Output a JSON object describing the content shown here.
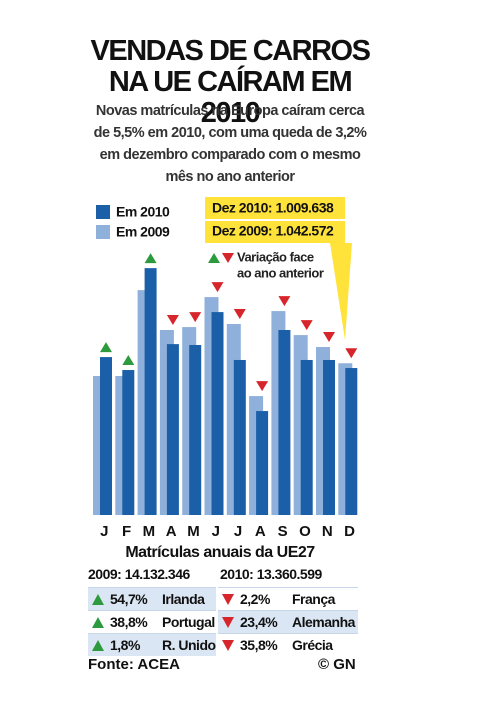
{
  "chart_data": {
    "type": "bar",
    "title": "VENDAS DE CARROS NA UE CAÍRAM EM 2010",
    "subtitle": "Novas matrículas na Europa caíram cerca de 5,5% em 2010, com uma queda de 3,2% em dezembro comparado com o mesmo mês no ano anterior",
    "categories": [
      "J",
      "F",
      "M",
      "A",
      "M",
      "J",
      "J",
      "A",
      "S",
      "O",
      "N",
      "D"
    ],
    "series": [
      {
        "name": "Em 2010",
        "color": "#1a5fa8",
        "values": [
          1085000,
          996000,
          1696000,
          1174000,
          1168000,
          1394000,
          1065000,
          714000,
          1271000,
          1065000,
          1065000,
          1009638
        ]
      },
      {
        "name": "Em 2009",
        "color": "#8fb0da",
        "values": [
          955000,
          955000,
          1545000,
          1271000,
          1291000,
          1497000,
          1312000,
          817000,
          1401000,
          1236000,
          1154000,
          1042572
        ]
      }
    ],
    "ylim": [
      0,
      1800000
    ],
    "callout": [
      "Dez 2010: 1.009.638",
      "Dez 2009: 1.042.572"
    ],
    "change_legend": [
      "Variação face",
      "ao ano anterior"
    ],
    "up_color": "#2e9a3e",
    "down_color": "#d7262b"
  },
  "annual": {
    "title": "Matrículas anuais da UE27",
    "totals": [
      "2009: 14.132.346",
      "2010: 13.360.599"
    ],
    "rising": [
      [
        "54,7%",
        "Irlanda"
      ],
      [
        "38,8%",
        "Portugal"
      ],
      [
        "1,8%",
        "R. Unido"
      ]
    ],
    "falling": [
      [
        "2,2%",
        "França"
      ],
      [
        "23,4%",
        "Alemanha"
      ],
      [
        "35,8%",
        "Grécia"
      ]
    ]
  },
  "footer": {
    "source": "Fonte: ACEA",
    "credit": "© GN"
  }
}
